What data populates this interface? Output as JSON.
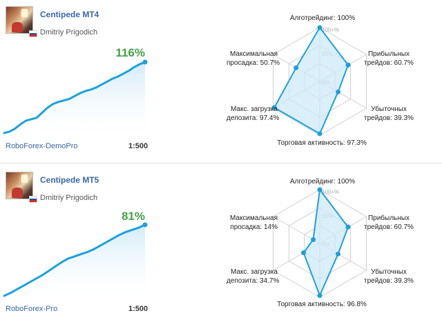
{
  "colors": {
    "accent": "#1aa0e0",
    "growth": "#43a047",
    "link": "#3867a8",
    "fill": "#cfeaf8"
  },
  "signals": [
    {
      "title": "Centipede MT4",
      "author": "Dmitriy Prigodich",
      "growth": "116%",
      "broker": "RoboForex-DemoPro",
      "leverage": "1:500",
      "equity_curve": [
        0.02,
        0.04,
        0.08,
        0.14,
        0.19,
        0.21,
        0.23,
        0.3,
        0.37,
        0.42,
        0.45,
        0.47,
        0.49,
        0.53,
        0.57,
        0.6,
        0.62,
        0.65,
        0.69,
        0.73,
        0.77,
        0.8,
        0.84,
        0.88,
        0.93,
        0.97,
        1.0
      ],
      "radar": {
        "scale_labels": [
          "100+%",
          "50%",
          "0%"
        ],
        "axes": [
          {
            "label": "Алготрейдинг: 100%",
            "value": 100
          },
          {
            "label": "Прибыльных трейдов: 60.7%",
            "value": 60.7
          },
          {
            "label": "Убыточных трейдов: 39.3%",
            "value": 39.3
          },
          {
            "label": "Торговая активность: 97.3%",
            "value": 97.3
          },
          {
            "label": "Макс. загрузка депозита: 97.4%",
            "value": 97.4
          },
          {
            "label": "Максимальная просадка: 50.7%",
            "value": 50.7
          }
        ],
        "label_lines": {
          "algo": "Алготрейдинг: 100%",
          "profit": [
            "Прибыльных",
            "трейдов: 60.7%"
          ],
          "loss": [
            "Убыточных",
            "трейдов: 39.3%"
          ],
          "activity": "Торговая активность: 97.3%",
          "load": [
            "Макс. загрузка",
            "депозита: 97.4%"
          ],
          "drawdown": [
            "Максимальная",
            "просадка: 50.7%"
          ]
        }
      }
    },
    {
      "title": "Centipede MT5",
      "author": "Dmitriy Prigodich",
      "growth": "81%",
      "broker": "RoboForex-Pro",
      "leverage": "1:500",
      "equity_curve": [
        0.01,
        0.05,
        0.1,
        0.15,
        0.2,
        0.25,
        0.3,
        0.36,
        0.42,
        0.48,
        0.53,
        0.56,
        0.59,
        0.62,
        0.66,
        0.71,
        0.76,
        0.81,
        0.86,
        0.9,
        0.93,
        0.96,
        1.0
      ],
      "radar": {
        "scale_labels": [
          "100+%",
          "50%",
          "0%"
        ],
        "axes": [
          {
            "label": "Алготрейдинг: 100%",
            "value": 100
          },
          {
            "label": "Прибыльных трейдов: 60.7%",
            "value": 60.7
          },
          {
            "label": "Убыточных трейдов: 39.3%",
            "value": 39.3
          },
          {
            "label": "Торговая активность: 96.8%",
            "value": 96.8
          },
          {
            "label": "Макс. загрузка депозита: 34.7%",
            "value": 34.7
          },
          {
            "label": "Максимальная просадка: 14%",
            "value": 14
          }
        ],
        "label_lines": {
          "algo": "Алготрейдинг: 100%",
          "profit": [
            "Прибыльных",
            "трейдов: 60.7%"
          ],
          "loss": [
            "Убыточных",
            "трейдов: 39.3%"
          ],
          "activity": "Торговая активность: 96.8%",
          "load": [
            "Макс. загрузка",
            "депозита: 34.7%"
          ],
          "drawdown": [
            "Максимальная",
            "просадка: 14%"
          ]
        }
      }
    }
  ]
}
